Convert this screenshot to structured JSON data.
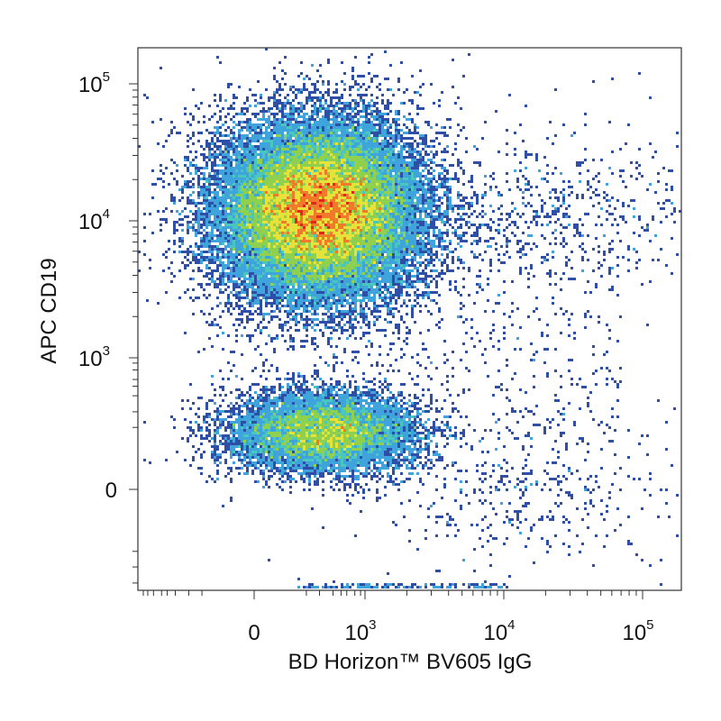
{
  "chart_data": {
    "type": "heatmap",
    "subtype": "flow-cytometry-density-dot-plot",
    "xlabel": "BD Horizon™ BV605 IgG",
    "ylabel": "APC  CD19",
    "x_scale": "biexponential",
    "y_scale": "biexponential",
    "x_range": [
      -1000,
      260000
    ],
    "y_range": [
      -800,
      260000
    ],
    "x_ticks": [
      {
        "value": 0,
        "base": "0",
        "exp": ""
      },
      {
        "value": 1000,
        "base": "10",
        "exp": "3"
      },
      {
        "value": 10000,
        "base": "10",
        "exp": "4"
      },
      {
        "value": 100000,
        "base": "10",
        "exp": "5"
      }
    ],
    "y_ticks": [
      {
        "value": 0,
        "base": "0",
        "exp": ""
      },
      {
        "value": 1000,
        "base": "10",
        "exp": "3"
      },
      {
        "value": 10000,
        "base": "10",
        "exp": "4"
      },
      {
        "value": 100000,
        "base": "10",
        "exp": "5"
      }
    ],
    "populations": [
      {
        "x_center": 100,
        "y_center": 12000,
        "relative_density": "high"
      },
      {
        "x_center": 120,
        "y_center": 40,
        "relative_density": "very high"
      },
      {
        "x_center": 20000,
        "y_center": 12000,
        "relative_density": "low"
      },
      {
        "x_center": 12000,
        "y_center": 0,
        "relative_density": "low"
      }
    ],
    "color_scale": [
      "#2f4fa6",
      "#3fa3dc",
      "#49c7bf",
      "#8fd14f",
      "#e6e23a",
      "#f07a2a",
      "#e2261c"
    ],
    "grid": false,
    "legend": "none"
  }
}
